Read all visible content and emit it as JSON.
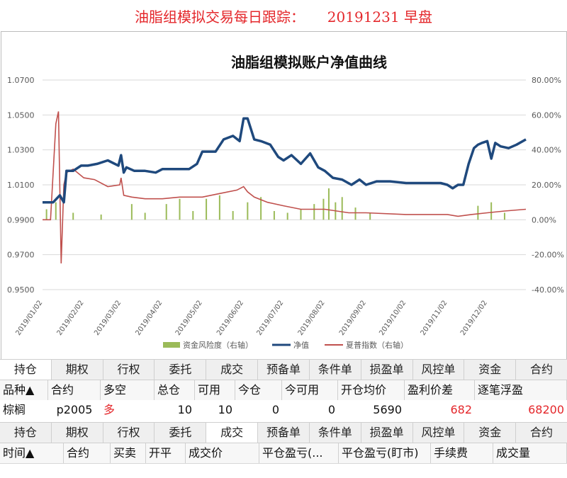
{
  "page_title": "油脂组模拟交易每日跟踪：     20191231 早盘",
  "chart": {
    "title": "油脂组模拟账户净值曲线",
    "left_axis_ticks": [
      "1.0700",
      "1.0500",
      "1.0300",
      "1.0100",
      "0.9900",
      "0.9700",
      "0.9500"
    ],
    "right_axis_ticks": [
      "80.00%",
      "60.00%",
      "40.00%",
      "20.00%",
      "0.00%",
      "-20.00%",
      "-40.00%"
    ],
    "x_tick_labels": [
      "2019/01/02",
      "2019/02/02",
      "2019/03/02",
      "2019/04/02",
      "2019/05/02",
      "2019/06/02",
      "2019/07/02",
      "2019/08/02",
      "2019/09/02",
      "2019/10/02",
      "2019/11/02",
      "2019/12/02"
    ],
    "legend": [
      {
        "label": "资金风险度（右轴）",
        "color": "#9bbb59"
      },
      {
        "label": "净值",
        "color": "#1f497d"
      },
      {
        "label": "夏普指数（右轴）",
        "color": "#c0504d"
      }
    ]
  },
  "chart_data": {
    "type": "line",
    "title": "油脂组模拟账户净值曲线",
    "x_range": [
      "2019/01/02",
      "2019/12/31"
    ],
    "left_ylim": [
      0.95,
      1.07
    ],
    "right_ylim": [
      -40,
      80
    ],
    "series": [
      {
        "name": "净值",
        "axis": "left",
        "color": "#1f497d",
        "x": [
          "2019/01/02",
          "2019/01/10",
          "2019/01/15",
          "2019/01/18",
          "2019/01/20",
          "2019/01/25",
          "2019/01/31",
          "2019/02/05",
          "2019/02/12",
          "2019/02/20",
          "2019/02/28",
          "2019/03/02",
          "2019/03/04",
          "2019/03/06",
          "2019/03/12",
          "2019/03/20",
          "2019/03/28",
          "2019/04/02",
          "2019/04/08",
          "2019/04/15",
          "2019/04/22",
          "2019/04/28",
          "2019/05/02",
          "2019/05/06",
          "2019/05/12",
          "2019/05/18",
          "2019/05/25",
          "2019/05/30",
          "2019/06/02",
          "2019/06/05",
          "2019/06/10",
          "2019/06/15",
          "2019/06/22",
          "2019/06/28",
          "2019/07/02",
          "2019/07/08",
          "2019/07/15",
          "2019/07/22",
          "2019/07/28",
          "2019/08/02",
          "2019/08/08",
          "2019/08/15",
          "2019/08/22",
          "2019/08/28",
          "2019/09/02",
          "2019/09/10",
          "2019/09/20",
          "2019/10/02",
          "2019/10/10",
          "2019/10/20",
          "2019/10/28",
          "2019/11/02",
          "2019/11/06",
          "2019/11/10",
          "2019/11/14",
          "2019/11/18",
          "2019/11/22",
          "2019/11/25",
          "2019/11/28",
          "2019/12/02",
          "2019/12/05",
          "2019/12/08",
          "2019/12/12",
          "2019/12/18",
          "2019/12/24",
          "2019/12/31"
        ],
        "values": [
          1.0,
          1.0,
          1.004,
          1.0,
          1.018,
          1.018,
          1.021,
          1.021,
          1.022,
          1.024,
          1.021,
          1.027,
          1.017,
          1.02,
          1.018,
          1.018,
          1.017,
          1.019,
          1.019,
          1.019,
          1.019,
          1.022,
          1.029,
          1.029,
          1.029,
          1.036,
          1.038,
          1.035,
          1.048,
          1.048,
          1.036,
          1.035,
          1.033,
          1.026,
          1.024,
          1.027,
          1.022,
          1.028,
          1.02,
          1.018,
          1.014,
          1.013,
          1.01,
          1.013,
          1.01,
          1.012,
          1.012,
          1.011,
          1.011,
          1.011,
          1.011,
          1.01,
          1.008,
          1.01,
          1.01,
          1.022,
          1.031,
          1.033,
          1.034,
          1.035,
          1.025,
          1.034,
          1.032,
          1.031,
          1.033,
          1.036
        ]
      },
      {
        "name": "夏普指数（右轴）",
        "axis": "right",
        "color": "#c0504d",
        "x": [
          "2019/01/02",
          "2019/01/08",
          "2019/01/12",
          "2019/01/14",
          "2019/01/16",
          "2019/01/18",
          "2019/01/20",
          "2019/01/25",
          "2019/02/02",
          "2019/02/10",
          "2019/02/20",
          "2019/03/01",
          "2019/03/02",
          "2019/03/04",
          "2019/03/10",
          "2019/03/20",
          "2019/04/02",
          "2019/04/15",
          "2019/05/02",
          "2019/05/15",
          "2019/05/28",
          "2019/06/02",
          "2019/06/05",
          "2019/06/10",
          "2019/06/20",
          "2019/07/02",
          "2019/07/15",
          "2019/08/02",
          "2019/08/20",
          "2019/09/02",
          "2019/10/02",
          "2019/11/02",
          "2019/11/10",
          "2019/11/20",
          "2019/12/02",
          "2019/12/15",
          "2019/12/31"
        ],
        "values": [
          0,
          0,
          55,
          62,
          -25,
          20,
          27,
          29,
          24,
          23,
          19,
          20,
          24,
          14,
          13,
          12,
          12,
          13,
          13,
          15,
          17,
          19,
          16,
          13,
          10,
          8,
          6,
          6,
          4,
          4,
          3,
          3,
          2,
          3,
          4,
          5,
          6
        ]
      },
      {
        "name": "资金风险度（右轴）",
        "axis": "right",
        "color": "#9bbb59",
        "x": [
          "2019/01/05",
          "2019/01/12",
          "2019/01/25",
          "2019/02/15",
          "2019/03/10",
          "2019/03/20",
          "2019/04/05",
          "2019/04/15",
          "2019/04/25",
          "2019/05/05",
          "2019/05/15",
          "2019/05/25",
          "2019/06/05",
          "2019/06/15",
          "2019/06/25",
          "2019/07/05",
          "2019/07/15",
          "2019/07/25",
          "2019/08/01",
          "2019/08/05",
          "2019/08/10",
          "2019/08/15",
          "2019/08/25",
          "2019/09/05",
          "2019/11/25",
          "2019/12/05",
          "2019/12/15"
        ],
        "values": [
          6,
          10,
          4,
          3,
          9,
          4,
          9,
          12,
          5,
          12,
          14,
          5,
          10,
          13,
          5,
          4,
          6,
          9,
          12,
          18,
          10,
          13,
          7,
          4,
          8,
          10,
          4
        ]
      }
    ]
  },
  "tabs_top": [
    {
      "label": "持仓",
      "active": true
    },
    {
      "label": "期权",
      "active": false
    },
    {
      "label": "行权",
      "active": false
    },
    {
      "label": "委托",
      "active": false
    },
    {
      "label": "成交",
      "active": false
    },
    {
      "label": "预备单",
      "active": false
    },
    {
      "label": "条件单",
      "active": false
    },
    {
      "label": "损盈单",
      "active": false
    },
    {
      "label": "风控单",
      "active": false
    },
    {
      "label": "资金",
      "active": false
    },
    {
      "label": "合约",
      "active": false
    }
  ],
  "positions": {
    "headers": [
      "品种▲",
      "合约",
      "多空",
      "总仓",
      "可用",
      "今仓",
      "今可用",
      "开仓均价",
      "盈利价差",
      "逐笔浮盈"
    ],
    "rows": [
      {
        "product": "棕榈",
        "contract": "p2005",
        "direction": "多",
        "total": "10",
        "available": "10",
        "today": "0",
        "today_available": "0",
        "avg_open_price": "5690",
        "price_diff": "682",
        "float_pnl": "68200"
      }
    ]
  },
  "tabs_bottom": [
    {
      "label": "持仓",
      "active": false
    },
    {
      "label": "期权",
      "active": false
    },
    {
      "label": "行权",
      "active": false
    },
    {
      "label": "委托",
      "active": false
    },
    {
      "label": "成交",
      "active": true
    },
    {
      "label": "预备单",
      "active": false
    },
    {
      "label": "条件单",
      "active": false
    },
    {
      "label": "损盈单",
      "active": false
    },
    {
      "label": "风控单",
      "active": false
    },
    {
      "label": "资金",
      "active": false
    },
    {
      "label": "合约",
      "active": false
    }
  ],
  "trades": {
    "headers": [
      "时间▲",
      "合约",
      "买卖",
      "开平",
      "成交价",
      "平仓盈亏(...",
      "平仓盈亏(盯市)",
      "手续费",
      "成交量"
    ]
  }
}
